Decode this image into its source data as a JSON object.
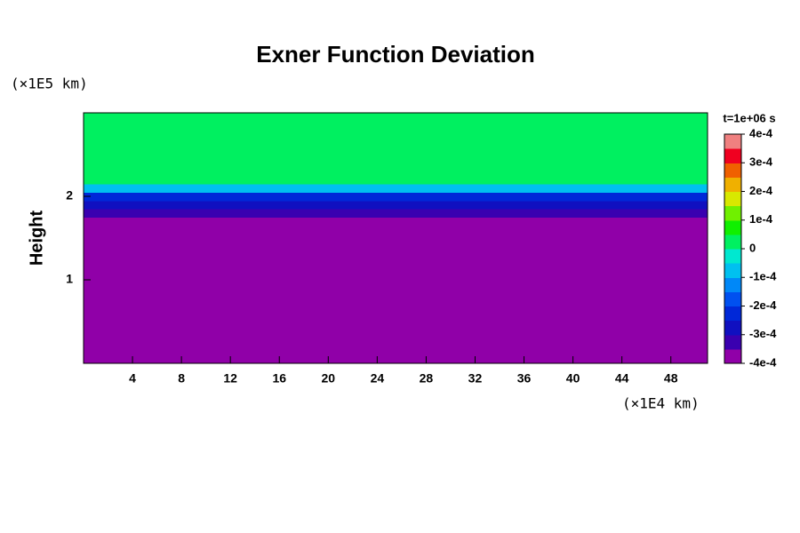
{
  "chart_data": {
    "type": "heatmap",
    "title": "Exner Function Deviation",
    "ylabel": "Height",
    "yunit": "(×1E5 km)",
    "xunit": "(×1E4 km)",
    "colorbar_title": "t=1e+06 s",
    "xlim": [
      0,
      51
    ],
    "xticks": [
      4,
      8,
      12,
      16,
      20,
      24,
      28,
      32,
      36,
      40,
      44,
      48
    ],
    "ylim": [
      0,
      3
    ],
    "yticks": [
      1,
      2
    ],
    "zlim": [
      -0.0004,
      0.0004
    ],
    "zticks": [
      {
        "value": 0.0004,
        "label": "4e-4"
      },
      {
        "value": 0.0003,
        "label": "3e-4"
      },
      {
        "value": 0.0002,
        "label": "2e-4"
      },
      {
        "value": 0.0001,
        "label": "1e-4"
      },
      0,
      {
        "value": -0.0001,
        "label": "-1e-4"
      },
      {
        "value": -0.0002,
        "label": "-2e-4"
      },
      {
        "value": -0.0003,
        "label": "-3e-4"
      },
      {
        "value": -0.0004,
        "label": "-4e-4"
      }
    ],
    "colors": [
      "#9000a8",
      "#3a00b0",
      "#1010c0",
      "#0028d8",
      "#0050f0",
      "#0088f8",
      "#00c0f0",
      "#00e8d0",
      "#00f060",
      "#10f000",
      "#70f000",
      "#d8e800",
      "#f0b000",
      "#f06000",
      "#f00020",
      "#f08080"
    ],
    "x": [
      0,
      3,
      6,
      9,
      12,
      15,
      18,
      21,
      24,
      27,
      30,
      33,
      36,
      39,
      42,
      45,
      48,
      51
    ],
    "y": [
      0.25,
      0.75,
      1.1,
      1.3,
      1.5,
      1.6,
      1.7,
      1.8,
      1.9,
      2.0,
      2.1,
      2.2,
      2.5,
      2.85
    ],
    "z": [
      [
        -0.00042,
        -0.00042,
        -0.00042,
        -0.00042,
        -0.00042,
        -0.00042,
        -0.00042,
        -0.00042,
        -0.00042,
        -0.00042,
        -0.00042,
        -0.00042,
        -0.00042,
        -0.00042,
        -0.00042,
        -0.00042,
        -0.00042,
        -0.00042
      ],
      [
        -0.00042,
        -0.00042,
        -0.00042,
        -0.00042,
        -0.00042,
        -0.00042,
        -0.00042,
        -0.00042,
        -0.00042,
        -0.00042,
        -0.00042,
        -0.00042,
        -0.00042,
        -0.00042,
        -0.00042,
        -0.00042,
        -0.00042,
        -0.00042
      ],
      [
        -0.00042,
        -0.00042,
        -0.00042,
        -0.00042,
        -0.00042,
        -0.00042,
        -0.00042,
        -0.00042,
        -0.00038,
        -0.00042,
        -0.00042,
        -0.00042,
        -0.00042,
        -0.00042,
        -0.00042,
        -0.00042,
        -0.00042,
        -0.00042
      ],
      [
        -0.00036,
        -0.00036,
        -0.00042,
        -0.00042,
        -0.00042,
        -0.00042,
        -0.00042,
        -0.00042,
        -0.00036,
        -0.00042,
        -0.00042,
        -0.00042,
        -0.00042,
        -0.00042,
        -0.00036,
        -0.00036,
        -0.00036,
        -0.00036
      ],
      [
        -0.00036,
        -0.00036,
        -0.00036,
        -0.00036,
        -0.00042,
        -0.00042,
        -0.00042,
        -0.00036,
        -0.00036,
        -0.00036,
        -0.00036,
        -0.00042,
        -0.00042,
        -0.00036,
        -0.00036,
        -0.00036,
        -0.00036,
        -0.00036
      ],
      [
        -0.00036,
        -0.00036,
        -0.00036,
        -0.00036,
        -0.00036,
        -0.00042,
        -0.00042,
        -0.00036,
        -0.00036,
        -0.00036,
        -0.00036,
        -0.00042,
        -0.00036,
        -0.00036,
        -0.00036,
        -0.00036,
        -0.00036,
        -0.00036
      ],
      [
        -0.00036,
        -0.00036,
        -0.00036,
        -0.00036,
        -0.00036,
        -0.00036,
        -0.00036,
        -0.00036,
        -0.00036,
        -0.00036,
        -0.00036,
        -0.00036,
        -0.00036,
        -0.00036,
        -0.00036,
        -0.00036,
        -0.00036,
        -0.00036
      ],
      [
        -0.00034,
        -0.00034,
        -0.00034,
        -0.00034,
        -0.00034,
        -0.00034,
        -0.00034,
        -0.00034,
        -0.00034,
        -0.00034,
        -0.00034,
        -0.00034,
        -0.00034,
        -0.00034,
        -0.00034,
        -0.00034,
        -0.00034,
        -0.00034
      ],
      [
        -0.0003,
        -0.0003,
        -0.0003,
        -0.0003,
        -0.0003,
        -0.0003,
        -0.0003,
        -0.0003,
        -0.0003,
        -0.0003,
        -0.0003,
        -0.0003,
        -0.0003,
        -0.0003,
        -0.0003,
        -0.0003,
        -0.0003,
        -0.0003
      ],
      [
        -0.00022,
        -0.00022,
        -0.00022,
        -0.00022,
        -0.00022,
        -0.00022,
        -0.00022,
        -0.00022,
        -0.00022,
        -0.00022,
        -0.00022,
        -0.00022,
        -0.00022,
        -0.00022,
        -0.00022,
        -0.00022,
        -0.00022,
        -0.00022
      ],
      [
        -0.0001,
        -0.0001,
        -0.0001,
        -0.0001,
        -0.0001,
        -0.0001,
        -0.0001,
        -0.0001,
        -0.0001,
        -0.0001,
        -0.0001,
        -0.0001,
        -0.0001,
        -0.0001,
        -0.0001,
        -0.0001,
        -0.0001,
        -0.0001
      ],
      [
        2e-05,
        2e-05,
        2e-05,
        2e-05,
        2e-05,
        2e-05,
        2e-05,
        2e-05,
        2e-05,
        2e-05,
        2e-05,
        2e-05,
        2e-05,
        2e-05,
        2e-05,
        2e-05,
        2e-05,
        2e-05
      ],
      [
        1e-05,
        1e-05,
        1e-05,
        1e-05,
        1e-05,
        1e-05,
        1e-05,
        1e-05,
        1e-05,
        1e-05,
        1e-05,
        1e-05,
        1e-05,
        1e-05,
        1e-05,
        1e-05,
        1e-05,
        1e-05
      ],
      [
        0,
        0,
        0,
        0,
        0,
        0,
        0,
        0,
        0,
        0,
        0,
        0,
        0,
        0,
        0,
        0,
        0,
        0
      ]
    ]
  }
}
